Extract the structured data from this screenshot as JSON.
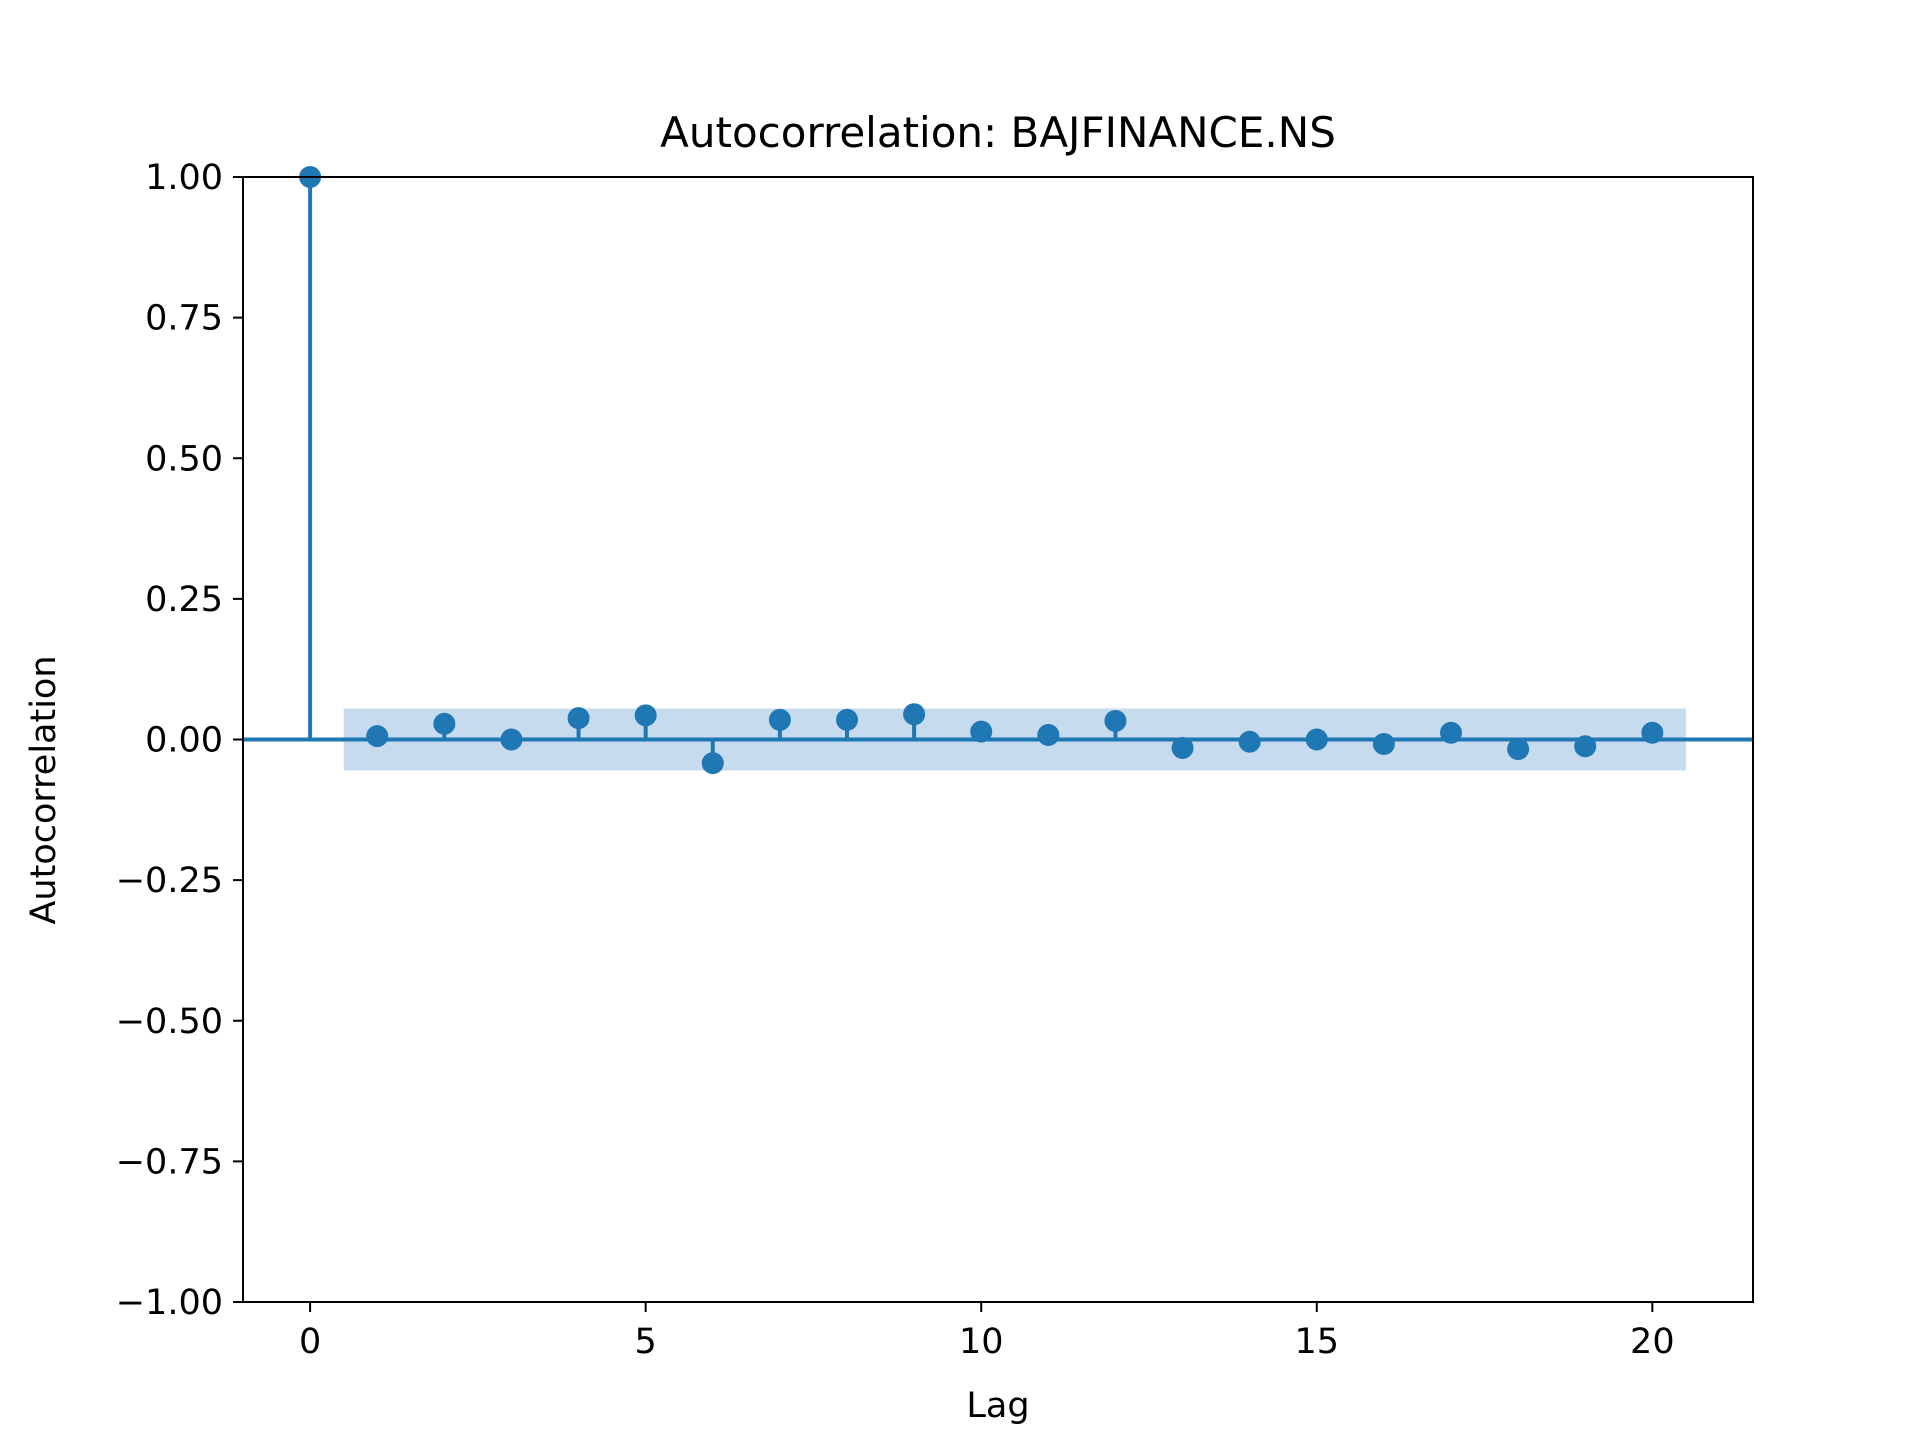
{
  "chart_data": {
    "type": "scatter",
    "style": "stem",
    "title": "Autocorrelation: BAJFINANCE.NS",
    "xlabel": "Lag",
    "ylabel": "Autocorrelation",
    "xlim": [
      -1,
      21.5
    ],
    "ylim": [
      -1.0,
      1.0
    ],
    "xticks": [
      0,
      5,
      10,
      15,
      20
    ],
    "xtick_labels": [
      "0",
      "5",
      "10",
      "15",
      "20"
    ],
    "yticks": [
      1.0,
      0.75,
      0.5,
      0.25,
      0.0,
      -0.25,
      -0.5,
      -0.75,
      -1.0
    ],
    "ytick_labels": [
      "1.00",
      "0.75",
      "0.50",
      "0.25",
      "0.00",
      "−0.25",
      "−0.50",
      "−0.75",
      "−1.00"
    ],
    "grid": false,
    "series": [
      {
        "x": [
          0,
          1,
          2,
          3,
          4,
          5,
          6,
          7,
          8,
          9,
          10,
          11,
          12,
          13,
          14,
          15,
          16,
          17,
          18,
          19,
          20
        ],
        "values": [
          1.0,
          0.006,
          0.028,
          0.0,
          0.038,
          0.043,
          -0.042,
          0.035,
          0.035,
          0.045,
          0.014,
          0.008,
          0.033,
          -0.015,
          -0.004,
          0.0,
          -0.008,
          0.012,
          -0.017,
          -0.012,
          0.012
        ]
      }
    ],
    "confidence_band": {
      "x_range": [
        0.5,
        20.5
      ],
      "lower": -0.055,
      "upper": 0.055
    },
    "baseline": 0.0,
    "colors": {
      "series": "#1f77b4",
      "band": "#c6dbed"
    }
  }
}
